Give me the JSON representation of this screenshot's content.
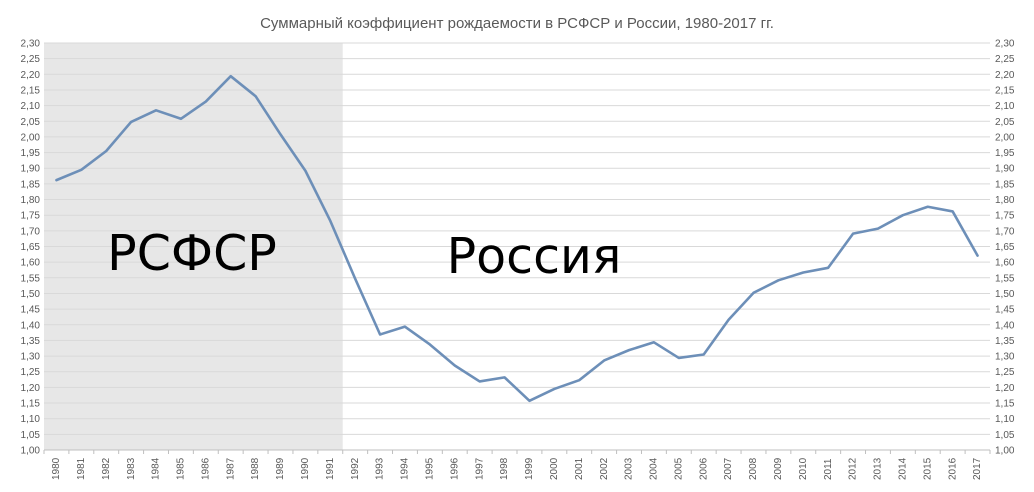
{
  "chart_data": {
    "type": "line",
    "title": "Суммарный коэффициент рождаемости в РСФСР и России, 1980-2017 гг.",
    "xlabel": "",
    "ylabel": "",
    "ylim": [
      1.0,
      2.3
    ],
    "y_ticks": [
      "1,00",
      "1,05",
      "1,10",
      "1,15",
      "1,20",
      "1,25",
      "1,30",
      "1,35",
      "1,40",
      "1,45",
      "1,50",
      "1,55",
      "1,60",
      "1,65",
      "1,70",
      "1,75",
      "1,80",
      "1,85",
      "1,90",
      "1,95",
      "2,00",
      "2,05",
      "2,10",
      "2,15",
      "2,20",
      "2,25",
      "2,30"
    ],
    "categories": [
      "1980",
      "1981",
      "1982",
      "1983",
      "1984",
      "1985",
      "1986",
      "1987",
      "1988",
      "1989",
      "1990",
      "1991",
      "1992",
      "1993",
      "1994",
      "1995",
      "1996",
      "1997",
      "1998",
      "1999",
      "2000",
      "2001",
      "2002",
      "2003",
      "2004",
      "2005",
      "2006",
      "2007",
      "2008",
      "2009",
      "2010",
      "2011",
      "2012",
      "2013",
      "2014",
      "2015",
      "2016",
      "2017"
    ],
    "series": [
      {
        "values": [
          1.862,
          1.895,
          1.955,
          2.048,
          2.085,
          2.058,
          2.113,
          2.194,
          2.13,
          2.008,
          1.892,
          1.732,
          1.547,
          1.369,
          1.394,
          1.337,
          1.27,
          1.219,
          1.232,
          1.157,
          1.195,
          1.223,
          1.286,
          1.319,
          1.344,
          1.294,
          1.305,
          1.416,
          1.502,
          1.542,
          1.567,
          1.582,
          1.691,
          1.707,
          1.75,
          1.777,
          1.762,
          1.621
        ]
      }
    ],
    "shaded_region": {
      "from": "1980",
      "to": "1991"
    },
    "region_labels": [
      "РСФСР",
      "Россия"
    ],
    "grid": true,
    "legend": "none",
    "colors": {
      "line": "#6d8fb8",
      "shade": "#e7e7e7",
      "grid": "#d9d9d9"
    }
  }
}
